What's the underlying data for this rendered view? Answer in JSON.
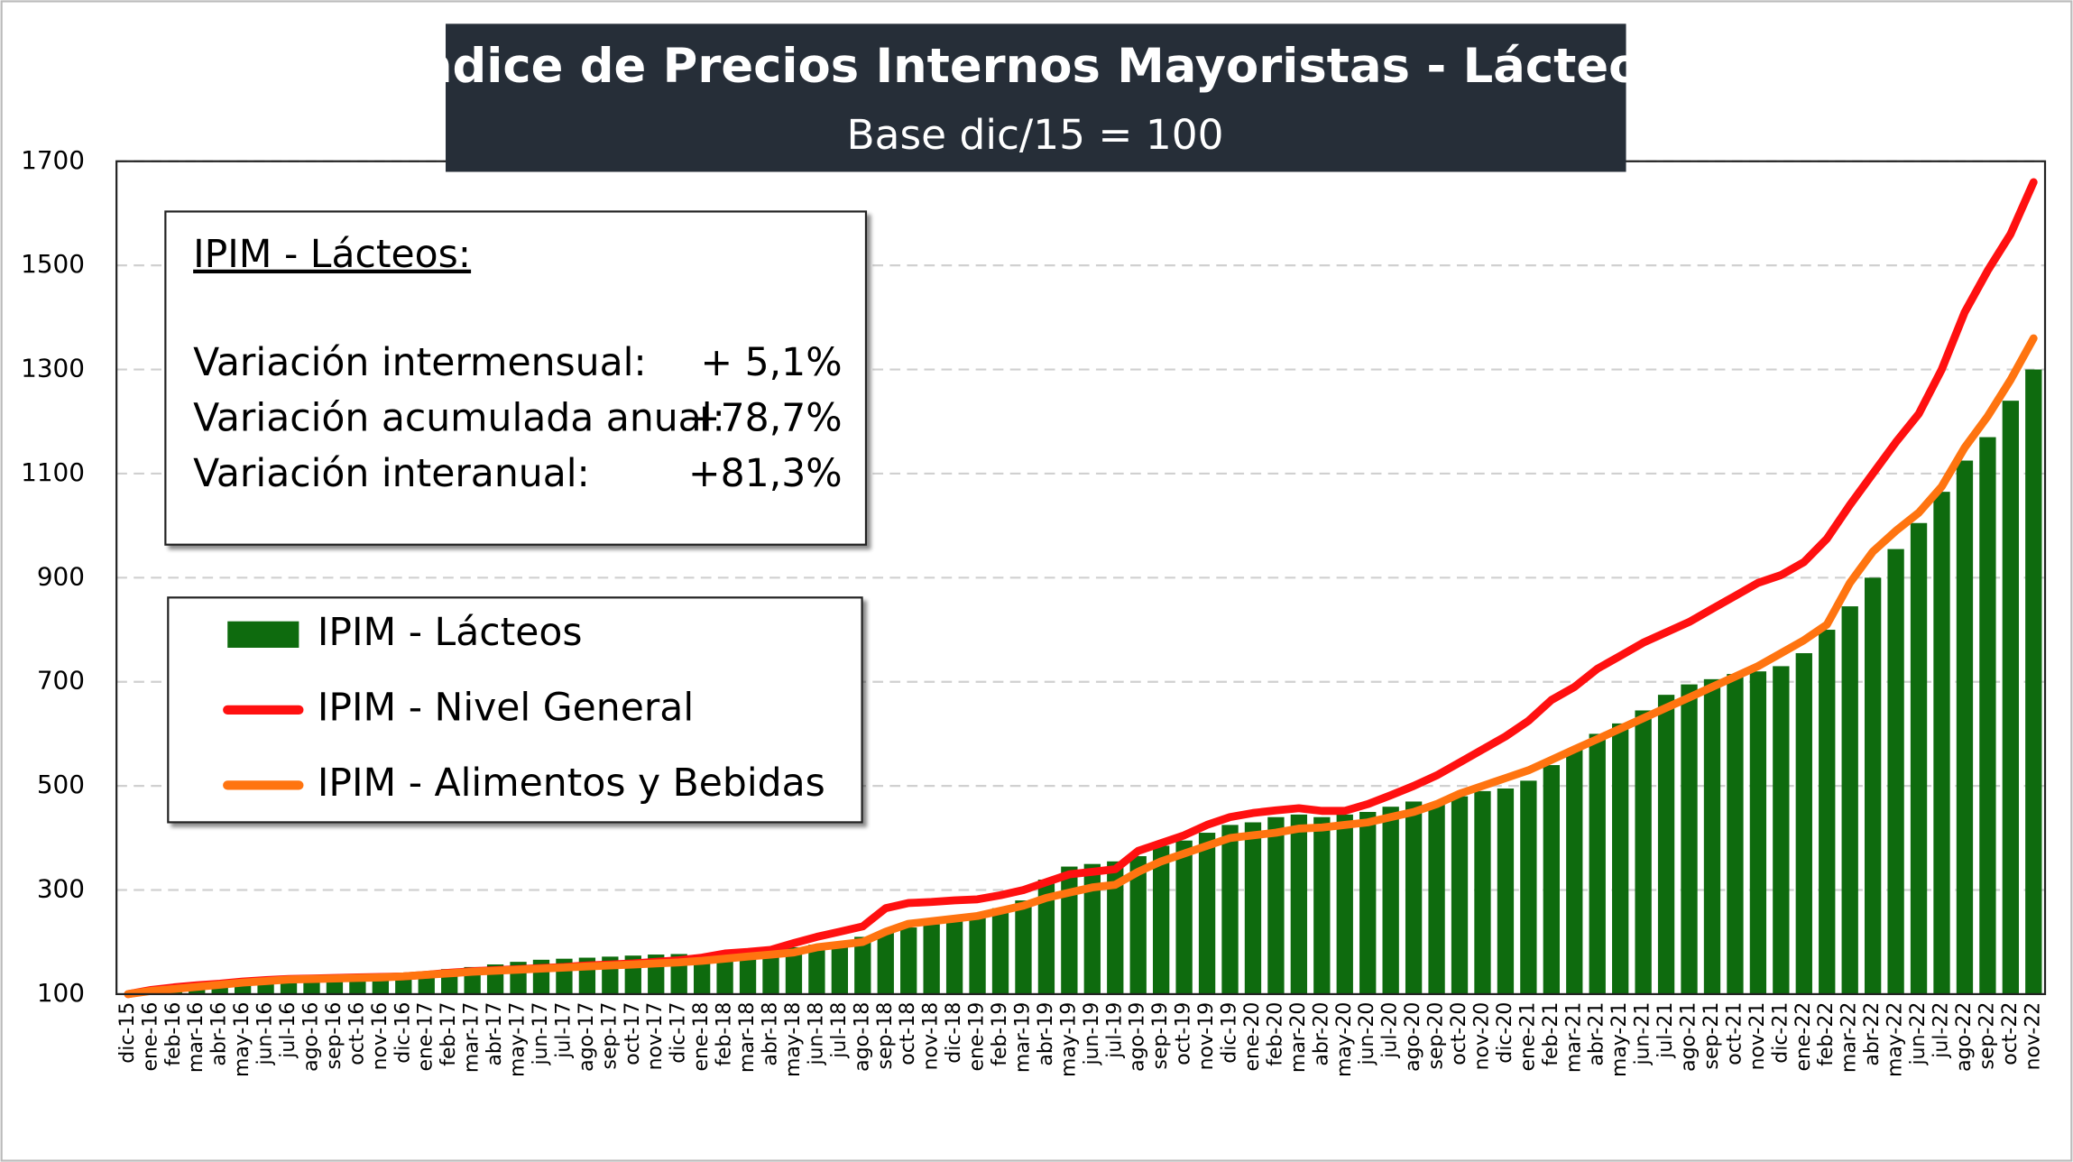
{
  "chart_data": {
    "type": "bar",
    "title": "Indice de Precios Internos Mayoristas - Lácteos",
    "subtitle": "Base dic/15 = 100",
    "annotation": {
      "title": "IPIM - Lácteos:",
      "rows": [
        {
          "label": "Variación intermensual:",
          "value": "+ 5,1%"
        },
        {
          "label": "Variación acumulada anual:",
          "value": "+78,7%"
        },
        {
          "label": "Variación interanual:",
          "value": "+81,3%"
        }
      ]
    },
    "categories": [
      "dic-15",
      "ene-16",
      "feb-16",
      "mar-16",
      "abr-16",
      "may-16",
      "jun-16",
      "jul-16",
      "ago-16",
      "sep-16",
      "oct-16",
      "nov-16",
      "dic-16",
      "ene-17",
      "feb-17",
      "mar-17",
      "abr-17",
      "may-17",
      "jun-17",
      "jul-17",
      "ago-17",
      "sep-17",
      "oct-17",
      "nov-17",
      "dic-17",
      "ene-18",
      "feb-18",
      "mar-18",
      "abr-18",
      "may-18",
      "jun-18",
      "jul-18",
      "ago-18",
      "sep-18",
      "oct-18",
      "nov-18",
      "dic-18",
      "ene-19",
      "feb-19",
      "mar-19",
      "abr-19",
      "may-19",
      "jun-19",
      "jul-19",
      "ago-19",
      "sep-19",
      "oct-19",
      "nov-19",
      "dic-19",
      "ene-20",
      "feb-20",
      "mar-20",
      "abr-20",
      "may-20",
      "jun-20",
      "jul-20",
      "ago-20",
      "sep-20",
      "oct-20",
      "nov-20",
      "dic-20",
      "ene-21",
      "feb-21",
      "mar-21",
      "abr-21",
      "may-21",
      "jun-21",
      "jul-21",
      "ago-21",
      "sep-21",
      "oct-21",
      "nov-21",
      "dic-21",
      "ene-22",
      "feb-22",
      "mar-22",
      "abr-22",
      "may-22",
      "jun-22",
      "jul-22",
      "ago-22",
      "sep-22",
      "oct-22",
      "nov-22"
    ],
    "series": [
      {
        "name": "IPIM - Lácteos",
        "type": "bar",
        "color": "#0e6b0e",
        "values": [
          100,
          105,
          110,
          113,
          116,
          120,
          123,
          126,
          128,
          130,
          131,
          133,
          135,
          140,
          148,
          152,
          157,
          162,
          166,
          168,
          170,
          172,
          174,
          176,
          177,
          176,
          178,
          180,
          183,
          190,
          195,
          200,
          210,
          220,
          228,
          234,
          240,
          255,
          265,
          280,
          320,
          345,
          350,
          355,
          365,
          385,
          395,
          410,
          425,
          430,
          440,
          445,
          440,
          445,
          450,
          460,
          470,
          465,
          480,
          490,
          495,
          510,
          540,
          570,
          600,
          620,
          645,
          675,
          695,
          705,
          715,
          720,
          730,
          755,
          800,
          845,
          900,
          955,
          1005,
          1065,
          1125,
          1170,
          1240,
          1300
        ]
      },
      {
        "name": "IPIM - Nivel General",
        "type": "line",
        "color": "#ff1010",
        "values": [
          100,
          108,
          113,
          117,
          120,
          124,
          127,
          129,
          130,
          131,
          132,
          133,
          134,
          137,
          141,
          144,
          146,
          148,
          150,
          152,
          155,
          157,
          159,
          162,
          165,
          170,
          178,
          181,
          185,
          198,
          210,
          220,
          230,
          265,
          275,
          277,
          280,
          282,
          290,
          300,
          315,
          330,
          335,
          340,
          375,
          390,
          405,
          425,
          440,
          448,
          453,
          457,
          452,
          452,
          465,
          482,
          500,
          520,
          545,
          570,
          595,
          625,
          665,
          690,
          725,
          750,
          775,
          795,
          815,
          840,
          865,
          890,
          905,
          930,
          975,
          1040,
          1100,
          1160,
          1215,
          1300,
          1410,
          1490,
          1560,
          1660
        ]
      },
      {
        "name": "IPIM - Alimentos y Bebidas",
        "type": "line",
        "color": "#ff7410",
        "values": [
          100,
          106,
          110,
          114,
          118,
          122,
          125,
          128,
          129,
          130,
          131,
          132,
          134,
          137,
          140,
          143,
          145,
          147,
          149,
          151,
          153,
          155,
          157,
          159,
          161,
          164,
          168,
          172,
          176,
          180,
          190,
          195,
          200,
          220,
          235,
          240,
          245,
          250,
          260,
          270,
          285,
          295,
          305,
          310,
          335,
          355,
          370,
          385,
          400,
          405,
          410,
          418,
          420,
          425,
          430,
          440,
          450,
          465,
          485,
          500,
          515,
          530,
          550,
          570,
          590,
          610,
          630,
          650,
          670,
          690,
          710,
          730,
          755,
          780,
          810,
          890,
          950,
          990,
          1025,
          1075,
          1150,
          1210,
          1280,
          1360
        ]
      }
    ],
    "ylim": [
      100,
      1700
    ],
    "yticks": [
      100,
      300,
      500,
      700,
      900,
      1100,
      1300,
      1500,
      1700
    ],
    "grid": true
  }
}
